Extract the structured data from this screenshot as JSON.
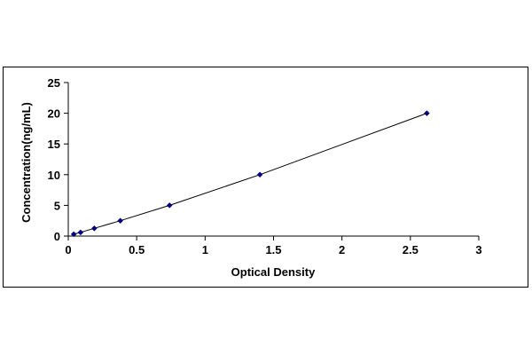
{
  "chart_data": {
    "type": "scatter",
    "title": "",
    "xlabel": "Optical Density",
    "ylabel": "Concentration(ng/mL)",
    "xlim": [
      0,
      3
    ],
    "ylim": [
      0,
      25
    ],
    "x_ticks": [
      "0",
      "0.5",
      "1",
      "1.5",
      "2",
      "2.5",
      "3"
    ],
    "y_ticks": [
      "0",
      "5",
      "10",
      "15",
      "20",
      "25"
    ],
    "grid": false,
    "legend": "none",
    "series": [
      {
        "x": [
          0.04,
          0.09,
          0.19,
          0.38,
          0.74,
          1.4,
          2.62
        ],
        "y": [
          0.3,
          0.6,
          1.25,
          2.5,
          5,
          10,
          20
        ],
        "marker": "diamond",
        "trendline": true,
        "color": "#000080"
      }
    ]
  }
}
